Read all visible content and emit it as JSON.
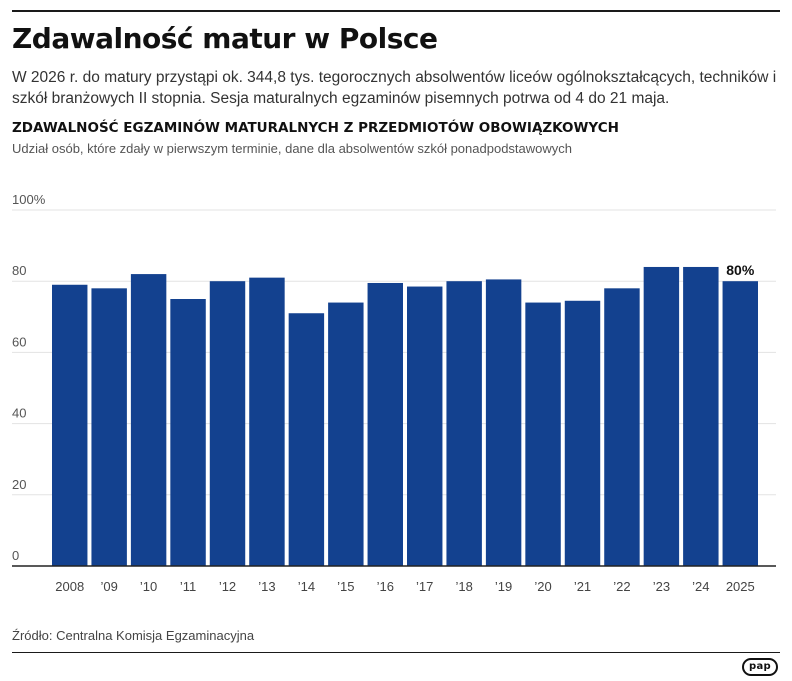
{
  "header": {
    "title": "Zdawalność matur w Polsce",
    "lead": "W 2026 r. do matury przystąpi ok. 344,8 tys. tegorocznych absolwentów liceów ogólnokształcących, techników i szkół branżowych II stopnia. Sesja maturalnych egzaminów pisemnych potrwa od 4 do 21 maja."
  },
  "chart_data": {
    "type": "bar",
    "title": "ZDAWALNOŚĆ EGZAMINÓW MATURALNYCH Z PRZEDMIOTÓW OBOWIĄZKOWYCH",
    "subtitle": "Udział osób, które zdały w pierwszym terminie, dane dla absolwentów szkół ponadpodstawowych",
    "categories": [
      "2008",
      "’09",
      "’10",
      "’11",
      "’12",
      "’13",
      "’14",
      "’15",
      "’16",
      "’17",
      "’18",
      "’19",
      "’20",
      "’21",
      "’22",
      "’23",
      "’24",
      "2025"
    ],
    "values": [
      79,
      78,
      82,
      75,
      80,
      81,
      71,
      74,
      79.5,
      78.5,
      80,
      80.5,
      74,
      74.5,
      78,
      84,
      84,
      80
    ],
    "data_labels": [
      {
        "index": 17,
        "text": "80%"
      }
    ],
    "yticks": [
      "0",
      "20",
      "40",
      "60",
      "80",
      "100%"
    ],
    "ylim": [
      0,
      100
    ],
    "grid": true,
    "bar_color": "#13418f"
  },
  "footer": {
    "source": "Źródło: Centralna Komisja Egzaminacyjna",
    "logo": "pap"
  }
}
